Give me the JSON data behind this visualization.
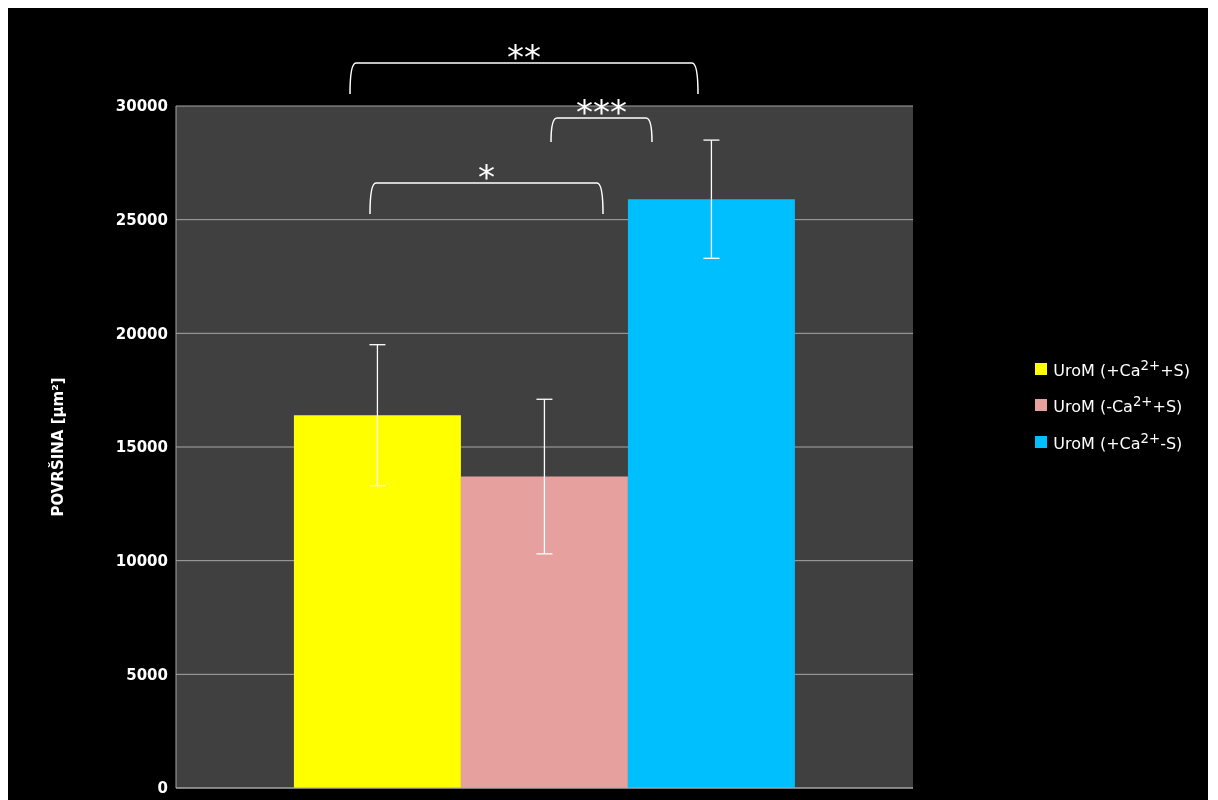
{
  "chart_data": {
    "type": "bar",
    "ylabel": "POVRŠINA [µm²]",
    "categories": [
      null
    ],
    "series": [
      {
        "name": "UroM (+Ca$^{2+}$+S)",
        "color": "#ffff00",
        "values": [
          16400
        ],
        "errors": [
          3100
        ]
      },
      {
        "name": "UroM (-Ca$^{2+}$+S)",
        "color": "#e6a19f",
        "values": [
          13700
        ],
        "errors": [
          3400
        ]
      },
      {
        "name": "UroM (+Ca$^{2+}$-S)",
        "color": "#00bfff",
        "values": [
          25900
        ],
        "errors": [
          2600
        ]
      }
    ],
    "ylim": [
      0,
      30000
    ],
    "yticks": [
      0,
      5000,
      10000,
      15000,
      20000,
      25000,
      30000
    ],
    "grid": "y",
    "legend": "right",
    "annotations": [
      "**",
      "***",
      "*"
    ]
  }
}
